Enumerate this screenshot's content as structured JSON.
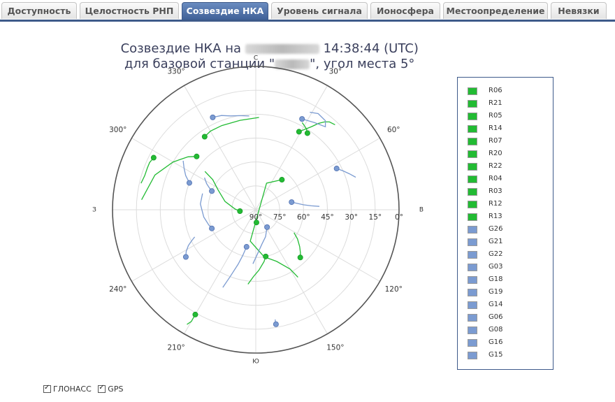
{
  "tabs": [
    {
      "label": "Доступность"
    },
    {
      "label": "Целостность РНП"
    },
    {
      "label": "Созвездие НКА"
    },
    {
      "label": "Уровень сигнала"
    },
    {
      "label": "Ионосфера"
    },
    {
      "label": "Местоопределение"
    },
    {
      "label": "Невязки"
    }
  ],
  "active_tab": 2,
  "colors": {
    "glonass": "#22bb33",
    "gps": "#7b9bd1",
    "tab_active": "#4a6ba3",
    "legend_border": "#3e5a8a"
  },
  "chart_data": {
    "type": "scatter",
    "projection": "polar-skyplot",
    "title_line1_prefix": "Созвездие НКА на",
    "title_line1_suffix": "14:38:44 (UTC)",
    "title_line2_prefix": "для базовой станции \"",
    "title_line2_suffix": "\", угол места 5°",
    "cardinal_labels": {
      "north": "С",
      "east": "В",
      "south": "Ю",
      "west": "З"
    },
    "azimuth_labels": [
      "30°",
      "60°",
      "120°",
      "150°",
      "210°",
      "240°",
      "300°",
      "330°"
    ],
    "elevation_labels": [
      "90°",
      "75°",
      "60°",
      "45°",
      "30°",
      "15°",
      "0°"
    ],
    "series": [
      {
        "name": "R06",
        "system": "glonass",
        "az": 34,
        "el": 32,
        "track": [
          [
            28,
            28
          ],
          [
            30,
            29
          ],
          [
            32,
            30
          ],
          [
            34,
            32
          ]
        ]
      },
      {
        "name": "R21",
        "system": "glonass",
        "az": 29,
        "el": 34,
        "track": [
          [
            43,
            17
          ],
          [
            40,
            18
          ],
          [
            38,
            20
          ],
          [
            36,
            23
          ],
          [
            34,
            27
          ],
          [
            32,
            30
          ],
          [
            29,
            34
          ]
        ]
      },
      {
        "name": "R05",
        "system": "glonass",
        "az": 325,
        "el": 34,
        "track": [
          [
            2,
            32
          ],
          [
            350,
            33
          ],
          [
            338,
            33
          ],
          [
            330,
            33
          ],
          [
            325,
            34
          ]
        ]
      },
      {
        "name": "R14",
        "system": "glonass",
        "az": 297,
        "el": 18,
        "track": [
          [
            283,
            16
          ],
          [
            287,
            17
          ],
          [
            291,
            17
          ],
          [
            294,
            17
          ],
          [
            297,
            18
          ]
        ]
      },
      {
        "name": "R07",
        "system": "glonass",
        "az": 312,
        "el": 40,
        "track": [
          [
            275,
            18
          ],
          [
            289,
            23
          ],
          [
            300,
            30
          ],
          [
            308,
            36
          ],
          [
            312,
            40
          ]
        ]
      },
      {
        "name": "R20",
        "system": "glonass",
        "az": 210,
        "el": 14,
        "track": [
          [
            211,
            6
          ],
          [
            210,
            9
          ],
          [
            210,
            11
          ],
          [
            210,
            14
          ]
        ]
      },
      {
        "name": "R22",
        "system": "glonass",
        "az": 168,
        "el": 60,
        "track": [
          [
            186,
            43
          ],
          [
            182,
            48
          ],
          [
            177,
            52
          ],
          [
            171,
            57
          ],
          [
            168,
            60
          ]
        ]
      },
      {
        "name": "R04",
        "system": "glonass",
        "az": 41,
        "el": 65,
        "track": [
          [
            148,
            40
          ],
          [
            150,
            47
          ],
          [
            158,
            55
          ],
          [
            170,
            60
          ],
          [
            190,
            70
          ],
          [
            22,
            72
          ],
          [
            41,
            65
          ]
        ]
      },
      {
        "name": "R03",
        "system": "glonass",
        "az": 137,
        "el": 49,
        "track": [
          [
            121,
            62
          ],
          [
            125,
            58
          ],
          [
            130,
            54
          ],
          [
            134,
            51
          ],
          [
            137,
            49
          ]
        ]
      },
      {
        "name": "R12",
        "system": "glonass",
        "az": 265,
        "el": 80,
        "track": [
          [
            307,
            50
          ],
          [
            305,
            57
          ],
          [
            298,
            63
          ],
          [
            285,
            70
          ],
          [
            272,
            77
          ],
          [
            265,
            80
          ]
        ]
      },
      {
        "name": "R13",
        "system": "glonass",
        "az": 177,
        "el": 82,
        "track": [
          [
            180,
            84
          ],
          [
            178,
            83
          ],
          [
            177,
            82
          ]
        ]
      },
      {
        "name": "G26",
        "system": "gps",
        "az": 335,
        "el": 26,
        "track": [
          [
            356,
            31
          ],
          [
            350,
            30
          ],
          [
            345,
            29
          ],
          [
            340,
            27
          ],
          [
            335,
            26
          ]
        ]
      },
      {
        "name": "G21",
        "system": "gps",
        "az": 27,
        "el": 26,
        "track": [
          [
            29,
            20
          ],
          [
            33,
            18
          ],
          [
            38,
            19
          ],
          [
            40,
            22
          ],
          [
            34,
            24
          ],
          [
            27,
            26
          ]
        ]
      },
      {
        "name": "G22",
        "system": "gps",
        "az": 63,
        "el": 33,
        "track": [
          [
            72,
            24
          ],
          [
            69,
            27
          ],
          [
            66,
            30
          ],
          [
            63,
            33
          ]
        ]
      },
      {
        "name": "G03",
        "system": "gps",
        "az": 170,
        "el": 17,
        "track": [
          [
            170,
            20
          ],
          [
            170,
            19
          ],
          [
            170,
            17
          ]
        ]
      },
      {
        "name": "G18",
        "system": "gps",
        "az": 147,
        "el": 77,
        "track": [
          [
            183,
            56
          ],
          [
            178,
            62
          ],
          [
            170,
            68
          ],
          [
            160,
            72
          ],
          [
            147,
            77
          ]
        ]
      },
      {
        "name": "G19",
        "system": "gps",
        "az": 78,
        "el": 67,
        "track": [
          [
            87,
            50
          ],
          [
            86,
            55
          ],
          [
            84,
            60
          ],
          [
            81,
            64
          ],
          [
            78,
            67
          ]
        ]
      },
      {
        "name": "G14",
        "system": "gps",
        "az": 247,
        "el": 60,
        "track": [
          [
            287,
            55
          ],
          [
            276,
            55
          ],
          [
            262,
            57
          ],
          [
            252,
            59
          ],
          [
            247,
            60
          ]
        ]
      },
      {
        "name": "G06",
        "system": "gps",
        "az": 293,
        "el": 60,
        "track": [
          [
            302,
            52
          ],
          [
            298,
            55
          ],
          [
            295,
            58
          ],
          [
            293,
            60
          ]
        ]
      },
      {
        "name": "G08",
        "system": "gps",
        "az": 236,
        "el": 37,
        "track": [
          [
            246,
            48
          ],
          [
            244,
            45
          ],
          [
            242,
            42
          ],
          [
            239,
            39
          ],
          [
            236,
            37
          ]
        ]
      },
      {
        "name": "G16",
        "system": "gps",
        "az": 292,
        "el": 45,
        "track": [
          [
            304,
            35
          ],
          [
            300,
            38
          ],
          [
            296,
            41
          ],
          [
            292,
            45
          ]
        ]
      },
      {
        "name": "G15",
        "system": "gps",
        "az": 194,
        "el": 66,
        "track": [
          [
            203,
            37
          ],
          [
            201,
            45
          ],
          [
            198,
            54
          ],
          [
            196,
            60
          ],
          [
            194,
            66
          ]
        ]
      }
    ]
  },
  "filters": {
    "glonass_label": "ГЛОНАСС",
    "gps_label": "GPS",
    "glonass_checked": true,
    "gps_checked": true
  }
}
